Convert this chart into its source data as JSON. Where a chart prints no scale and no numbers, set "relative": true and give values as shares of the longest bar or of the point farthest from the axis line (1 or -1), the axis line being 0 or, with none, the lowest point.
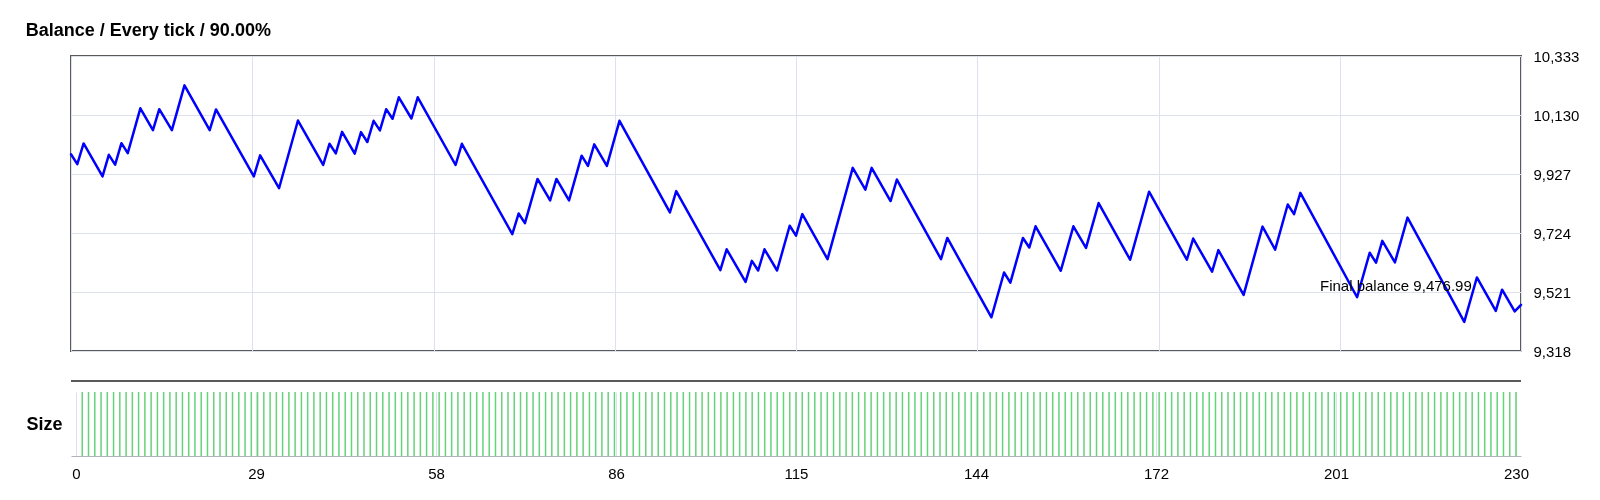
{
  "chart_data": [
    {
      "type": "line",
      "title": "Balance / Every tick / 90.00%",
      "x": [
        0,
        1,
        2,
        5,
        6,
        7,
        8,
        9,
        11,
        13,
        14,
        16,
        18,
        22,
        23,
        29,
        30,
        33,
        36,
        40,
        41,
        42,
        43,
        45,
        46,
        47,
        48,
        49,
        50,
        51,
        52,
        54,
        55,
        61,
        62,
        70,
        71,
        72,
        74,
        76,
        77,
        79,
        81,
        82,
        83,
        85,
        87,
        95,
        96,
        103,
        104,
        107,
        108,
        109,
        110,
        112,
        114,
        115,
        116,
        120,
        124,
        126,
        127,
        130,
        131,
        138,
        139,
        146,
        148,
        149,
        151,
        152,
        153,
        157,
        159,
        161,
        163,
        168,
        171,
        177,
        178,
        181,
        182,
        186,
        189,
        191,
        193,
        194,
        195,
        204,
        206,
        207,
        208,
        210,
        212,
        221,
        223,
        226,
        227,
        229,
        230
      ],
      "series": [
        {
          "color": "#0000ff",
          "values": [
            9995,
            9961,
            10032,
            9919,
            9993,
            9959,
            10033,
            9999,
            10153,
            10078,
            10150,
            10078,
            10232,
            10078,
            10149,
            9919,
            9991,
            9878,
            10111,
            9958,
            10031,
            9998,
            10072,
            9997,
            10071,
            10037,
            10110,
            10077,
            10150,
            10117,
            10191,
            10118,
            10191,
            9958,
            10031,
            9720,
            9791,
            9758,
            9910,
            9836,
            9910,
            9836,
            9990,
            9955,
            10029,
            9955,
            10110,
            9795,
            9868,
            9596,
            9668,
            9556,
            9628,
            9595,
            9668,
            9595,
            9749,
            9715,
            9789,
            9634,
            9948,
            9873,
            9948,
            9834,
            9908,
            9634,
            9707,
            9434,
            9588,
            9553,
            9707,
            9674,
            9747,
            9594,
            9747,
            9673,
            9827,
            9632,
            9866,
            9632,
            9705,
            9591,
            9665,
            9511,
            9746,
            9667,
            9822,
            9789,
            9862,
            9503,
            9656,
            9622,
            9697,
            9623,
            9777,
            9418,
            9571,
            9456,
            9529,
            9454,
            9477
          ]
        }
      ],
      "xlim": [
        0,
        230
      ],
      "xticks": [
        {
          "value": 0,
          "label": null
        },
        {
          "value": 28.75,
          "label": null
        },
        {
          "value": 57.5,
          "label": null
        },
        {
          "value": 86.25,
          "label": null
        },
        {
          "value": 115,
          "label": null
        },
        {
          "value": 143.75,
          "label": null
        },
        {
          "value": 172.5,
          "label": null
        },
        {
          "value": 201.25,
          "label": null
        },
        {
          "value": 230,
          "label": null
        }
      ],
      "ylim": [
        9318,
        10333
      ],
      "yticks": [
        {
          "value": 9318,
          "label": "9,318"
        },
        {
          "value": 9521,
          "label": "9,521"
        },
        {
          "value": 9724,
          "label": "9,724"
        },
        {
          "value": 9927,
          "label": "9,927"
        },
        {
          "value": 10130,
          "label": "10,130"
        },
        {
          "value": 10333,
          "label": "10,333"
        }
      ],
      "grid": true,
      "tick_labels": "y",
      "annotations": [
        "Final balance 9,476.99"
      ]
    },
    {
      "type": "bar",
      "ylabel": "Size",
      "relative": true,
      "x": [
        1,
        2,
        3,
        4,
        5,
        6,
        7,
        8,
        9,
        10,
        11,
        12,
        13,
        14,
        15,
        16,
        17,
        18,
        19,
        20,
        21,
        22,
        23,
        24,
        25,
        26,
        27,
        28,
        29,
        30,
        31,
        32,
        33,
        34,
        35,
        36,
        37,
        38,
        39,
        40,
        41,
        42,
        43,
        44,
        45,
        46,
        47,
        48,
        49,
        50,
        51,
        52,
        53,
        54,
        55,
        56,
        57,
        58,
        59,
        60,
        61,
        62,
        63,
        64,
        65,
        66,
        67,
        68,
        69,
        70,
        71,
        72,
        73,
        74,
        75,
        76,
        77,
        78,
        79,
        80,
        81,
        82,
        83,
        84,
        85,
        86,
        87,
        88,
        89,
        90,
        91,
        92,
        93,
        94,
        95,
        96,
        97,
        98,
        99,
        100,
        101,
        102,
        103,
        104,
        105,
        106,
        107,
        108,
        109,
        110,
        111,
        112,
        113,
        114,
        115,
        116,
        117,
        118,
        119,
        120,
        121,
        122,
        123,
        124,
        125,
        126,
        127,
        128,
        129,
        130,
        131,
        132,
        133,
        134,
        135,
        136,
        137,
        138,
        139,
        140,
        141,
        142,
        143,
        144,
        145,
        146,
        147,
        148,
        149,
        150,
        151,
        152,
        153,
        154,
        155,
        156,
        157,
        158,
        159,
        160,
        161,
        162,
        163,
        164,
        165,
        166,
        167,
        168,
        169,
        170,
        171,
        172,
        173,
        174,
        175,
        176,
        177,
        178,
        179,
        180,
        181,
        182,
        183,
        184,
        185,
        186,
        187,
        188,
        189,
        190,
        191,
        192,
        193,
        194,
        195,
        196,
        197,
        198,
        199,
        200,
        201,
        202,
        203,
        204,
        205,
        206,
        207,
        208,
        209,
        210,
        211,
        212,
        213,
        214,
        215,
        216,
        217,
        218,
        219,
        220,
        221,
        222,
        223,
        224,
        225,
        226,
        227,
        228,
        229,
        230
      ],
      "series": [
        {
          "color": "#66d27a",
          "values": [
            1,
            1,
            1,
            1,
            1,
            1,
            1,
            1,
            1,
            1,
            1,
            1,
            1,
            1,
            1,
            1,
            1,
            1,
            1,
            1,
            1,
            1,
            1,
            1,
            1,
            1,
            1,
            1,
            1,
            1,
            1,
            1,
            1,
            1,
            1,
            1,
            1,
            1,
            1,
            1,
            1,
            1,
            1,
            1,
            1,
            1,
            1,
            1,
            1,
            1,
            1,
            1,
            1,
            1,
            1,
            1,
            1,
            1,
            1,
            1,
            1,
            1,
            1,
            1,
            1,
            1,
            1,
            1,
            1,
            1,
            1,
            1,
            1,
            1,
            1,
            1,
            1,
            1,
            1,
            1,
            1,
            1,
            1,
            1,
            1,
            1,
            1,
            1,
            1,
            1,
            1,
            1,
            1,
            1,
            1,
            1,
            1,
            1,
            1,
            1,
            1,
            1,
            1,
            1,
            1,
            1,
            1,
            1,
            1,
            1,
            1,
            1,
            1,
            1,
            1,
            1,
            1,
            1,
            1,
            1,
            1,
            1,
            1,
            1,
            1,
            1,
            1,
            1,
            1,
            1,
            1,
            1,
            1,
            1,
            1,
            1,
            1,
            1,
            1,
            1,
            1,
            1,
            1,
            1,
            1,
            1,
            1,
            1,
            1,
            1,
            1,
            1,
            1,
            1,
            1,
            1,
            1,
            1,
            1,
            1,
            1,
            1,
            1,
            1,
            1,
            1,
            1,
            1,
            1,
            1,
            1,
            1,
            1,
            1,
            1,
            1,
            1,
            1,
            1,
            1,
            1,
            1,
            1,
            1,
            1,
            1,
            1,
            1,
            1,
            1,
            1,
            1,
            1,
            1,
            1,
            1,
            1,
            1,
            1,
            1,
            1,
            1,
            1,
            1,
            1,
            1,
            1,
            1,
            1,
            1,
            1,
            1,
            1,
            1,
            1,
            1,
            1,
            1,
            1,
            1,
            1,
            1,
            1,
            1,
            1,
            1,
            1,
            1,
            1,
            1
          ]
        }
      ],
      "xlim": [
        0,
        230
      ],
      "xticks": [
        0,
        {
          "value": 28.75,
          "label": "29"
        },
        {
          "value": 57.5,
          "label": "58"
        },
        {
          "value": 86.25,
          "label": "86"
        },
        115,
        {
          "value": 143.75,
          "label": "144"
        },
        {
          "value": 172.5,
          "label": "172"
        },
        {
          "value": 201.25,
          "label": "201"
        },
        230
      ],
      "grid": "x",
      "tick_labels": "x"
    }
  ]
}
